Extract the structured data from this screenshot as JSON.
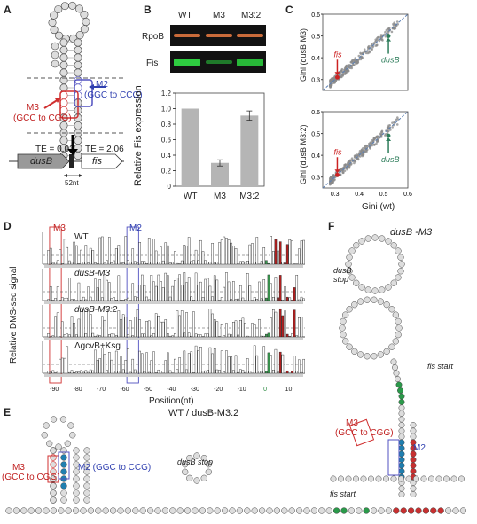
{
  "panels": {
    "A": {
      "letter": "A",
      "m2_label": "M2",
      "m2_sub": "(GGC to CCG)",
      "m3_label": "M3",
      "m3_sub": "(GCC to CGG)",
      "te_left": "TE = 0.02",
      "te_right": "TE = 2.06",
      "gene_left": "dusB",
      "gene_right": "fis",
      "spacer": "52nt"
    },
    "B": {
      "letter": "B",
      "blot_cols": [
        "WT",
        "M3",
        "M3:2"
      ],
      "blot_rows": [
        "RpoB",
        "Fis"
      ]
    },
    "C": {
      "letter": "C",
      "top_ylabel": "Gini (dusB M3)",
      "bottom_ylabel": "Gini (dusB M3:2)",
      "xlabel": "Gini (wt)",
      "fis": "fis",
      "dusB": "dusB",
      "ticks": [
        "0.3",
        "0.4",
        "0.5",
        "0.6"
      ]
    },
    "D": {
      "letter": "D",
      "ylabel": "Relative DMS-seq signal",
      "xlabel": "Position(nt)",
      "m3": "M3",
      "m2": "M2",
      "tracks": [
        "WT",
        "dusB-M3",
        "dusB-M3:2",
        "ΔgcvB+Ksg"
      ],
      "ticks": [
        "-90",
        "-80",
        "-70",
        "-60",
        "-50",
        "-40",
        "-30",
        "-20",
        "-10",
        "0",
        "10"
      ]
    },
    "E": {
      "letter": "E",
      "title": "WT / dusB-M3:2",
      "m3": "M3",
      "m3_sub": "(GCC to CGG)",
      "m2": "M2 (GGC to CCG)",
      "dusb_stop": "dusB stop",
      "fis_start": "fis start"
    },
    "F": {
      "letter": "F",
      "title": "dusB -M3",
      "dusb_stop": "dusB\nstop",
      "fis_start": "fis start",
      "m3": "M3",
      "m3_sub": "(GCC to CGG)",
      "m2": "M2"
    }
  },
  "chart_data": [
    {
      "type": "bar",
      "title": "",
      "categories": [
        "WT",
        "M3",
        "M3:2"
      ],
      "values": [
        1.0,
        0.3,
        0.91
      ],
      "errors": [
        0.0,
        0.04,
        0.06
      ],
      "xlabel": "",
      "ylabel": "Relative Fis expression",
      "ylim": [
        0,
        1.2
      ],
      "yticks": [
        "0",
        "0.2",
        "0.4",
        "0.6",
        "0.8",
        "1.0",
        "1.2"
      ],
      "colors": {
        "bar": "#b5b5b5"
      }
    },
    {
      "type": "scatter",
      "ylabel": "Gini (dusB M3)",
      "xlim": [
        0.25,
        0.6
      ],
      "ylim": [
        0.25,
        0.6
      ],
      "highlight": [
        {
          "name": "fis",
          "x": 0.31,
          "y": 0.31,
          "color": "#cc2222"
        },
        {
          "name": "dusB",
          "x": 0.52,
          "y": 0.5,
          "color": "#2e7d5b"
        }
      ]
    },
    {
      "type": "scatter",
      "ylabel": "Gini (dusB M3:2)",
      "xlabel": "Gini (wt)",
      "xlim": [
        0.25,
        0.6
      ],
      "ylim": [
        0.25,
        0.6
      ],
      "highlight": [
        {
          "name": "fis",
          "x": 0.31,
          "y": 0.31,
          "color": "#cc2222"
        },
        {
          "name": "dusB",
          "x": 0.52,
          "y": 0.49,
          "color": "#2e7d5b"
        }
      ]
    }
  ]
}
